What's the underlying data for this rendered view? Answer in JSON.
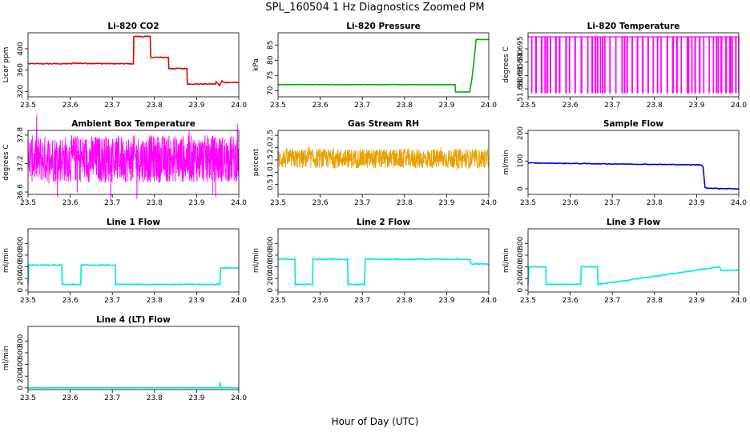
{
  "figure": {
    "title": "SPL_160504  1 Hz Diagnostics Zoomed PM",
    "xlabel": "Hour of Day (UTC)"
  },
  "chart_data": [
    {
      "type": "line",
      "title": "Li-820 CO2",
      "ylabel": "Licor ppm",
      "xlim": [
        23.5,
        24.0
      ],
      "ylim": [
        310,
        430
      ],
      "xticks": [
        "23.5",
        "23.6",
        "23.7",
        "23.8",
        "23.9",
        "24.0"
      ],
      "yticks": [
        {
          "v": 320,
          "label": "320"
        },
        {
          "v": 360,
          "label": "360"
        },
        {
          "v": 400,
          "label": "400"
        }
      ],
      "color": "#e00000",
      "noise": 0.8,
      "series": [
        {
          "x": [
            23.5,
            23.605,
            23.606,
            23.7,
            23.75,
            23.751,
            23.79,
            23.791,
            23.833,
            23.834,
            23.877,
            23.878,
            23.945,
            23.946,
            23.955,
            23.96,
            23.965,
            24.0
          ],
          "y": [
            372,
            372,
            373,
            372,
            372,
            423,
            423,
            384,
            384,
            363,
            363,
            334,
            334,
            338,
            331,
            340,
            337,
            337
          ]
        }
      ]
    },
    {
      "type": "line",
      "title": "Li-820 Pressure",
      "ylabel": "kPa",
      "xlim": [
        23.5,
        24.0
      ],
      "ylim": [
        68,
        89
      ],
      "xticks": [
        "23.5",
        "23.6",
        "23.7",
        "23.8",
        "23.9",
        "24.0"
      ],
      "yticks": [
        {
          "v": 70,
          "label": "70"
        },
        {
          "v": 75,
          "label": "75"
        },
        {
          "v": 80,
          "label": "80"
        },
        {
          "v": 85,
          "label": "85"
        }
      ],
      "color": "#00b000",
      "noise": 0.05,
      "series": [
        {
          "x": [
            23.5,
            23.92,
            23.921,
            23.955,
            23.96,
            23.965,
            23.97,
            24.0
          ],
          "y": [
            72,
            72,
            69.6,
            69.6,
            74,
            80,
            86.8,
            86.8
          ]
        }
      ]
    },
    {
      "type": "line",
      "title": "Li-820 Temperature",
      "ylabel": "degrees C",
      "xlim": [
        23.5,
        24.0
      ],
      "ylim": [
        51.677,
        51.701
      ],
      "xticks": [
        "23.5",
        "23.6",
        "23.7",
        "23.8",
        "23.9",
        "24.0"
      ],
      "yticks": [
        {
          "v": 51.68,
          "label": "51.680"
        },
        {
          "v": 51.685,
          "label": "51.685"
        },
        {
          "v": 51.69,
          "label": "51.690"
        },
        {
          "v": 51.695,
          "label": "51.695"
        }
      ],
      "color": "#ff00ff",
      "binary": [
        51.6785,
        51.6995
      ],
      "series": [
        {
          "x": [
            23.5,
            24.0
          ],
          "y": [
            51.6995,
            51.6995
          ]
        }
      ]
    },
    {
      "type": "line",
      "title": "Ambient Box Temperature",
      "ylabel": "degrees C",
      "xlim": [
        23.5,
        24.0
      ],
      "ylim": [
        36.55,
        37.9
      ],
      "xticks": [
        "23.5",
        "23.6",
        "23.7",
        "23.8",
        "23.9",
        "24.0"
      ],
      "yticks": [
        {
          "v": 36.6,
          "label": "36.6"
        },
        {
          "v": 37.2,
          "label": "37.2"
        },
        {
          "v": 37.8,
          "label": "37.8"
        }
      ],
      "color": "#ff00ff",
      "band": [
        36.8,
        37.8
      ],
      "series": [
        {
          "x": [
            23.5,
            24.0
          ],
          "y": [
            37.3,
            37.3
          ]
        }
      ]
    },
    {
      "type": "scatter",
      "title": "Gas Stream RH",
      "ylabel": "percent",
      "xlim": [
        23.5,
        24.0
      ],
      "ylim": [
        0.1,
        2.7
      ],
      "xticks": [
        "23.5",
        "23.6",
        "23.7",
        "23.8",
        "23.9",
        "24.0"
      ],
      "yticks": [
        {
          "v": 0.5,
          "label": "0.5"
        },
        {
          "v": 1.0,
          "label": "1.0"
        },
        {
          "v": 1.5,
          "label": "1.5"
        },
        {
          "v": 2.0,
          "label": "2.0"
        },
        {
          "v": 2.5,
          "label": "2.5"
        }
      ],
      "color": "#e8a000",
      "band": [
        1.15,
        1.95
      ],
      "series": [
        {
          "x": [
            23.5,
            24.0
          ],
          "y": [
            1.55,
            1.55
          ]
        }
      ]
    },
    {
      "type": "line",
      "title": "Sample Flow",
      "ylabel": "ml/min",
      "xlim": [
        23.5,
        24.0
      ],
      "ylim": [
        -20,
        210
      ],
      "xticks": [
        "23.5",
        "23.6",
        "23.7",
        "23.8",
        "23.9",
        "24.0"
      ],
      "yticks": [
        {
          "v": 0,
          "label": "0"
        },
        {
          "v": 100,
          "label": "100"
        },
        {
          "v": 200,
          "label": "200"
        }
      ],
      "color": "#0000cc",
      "noise": 1.2,
      "series": [
        {
          "x": [
            23.5,
            23.91,
            23.915,
            23.92,
            23.93,
            24.0
          ],
          "y": [
            93,
            86,
            80,
            5,
            2,
            0
          ]
        }
      ]
    },
    {
      "type": "line",
      "title": "Line 1 Flow",
      "ylabel": "ml/min",
      "xlim": [
        23.5,
        24.0
      ],
      "ylim": [
        -30,
        1050
      ],
      "xticks": [
        "23.5",
        "23.6",
        "23.7",
        "23.8",
        "23.9",
        "24.0"
      ],
      "yticks": [
        {
          "v": 0,
          "label": "0"
        },
        {
          "v": 200,
          "label": "200"
        },
        {
          "v": 400,
          "label": "400"
        },
        {
          "v": 600,
          "label": "600"
        },
        {
          "v": 800,
          "label": "800"
        }
      ],
      "color": "#00e5ee",
      "noise": 8,
      "series": [
        {
          "x": [
            23.5,
            23.502,
            23.58,
            23.581,
            23.625,
            23.626,
            23.707,
            23.708,
            23.955,
            23.957,
            24.0
          ],
          "y": [
            100,
            430,
            430,
            100,
            100,
            430,
            430,
            100,
            100,
            380,
            380
          ]
        }
      ]
    },
    {
      "type": "line",
      "title": "Line 2 Flow",
      "ylabel": "ml/min",
      "xlim": [
        23.5,
        24.0
      ],
      "ylim": [
        -30,
        1050
      ],
      "xticks": [
        "23.5",
        "23.6",
        "23.7",
        "23.8",
        "23.9",
        "24.0"
      ],
      "yticks": [
        {
          "v": 0,
          "label": "0"
        },
        {
          "v": 200,
          "label": "200"
        },
        {
          "v": 400,
          "label": "400"
        },
        {
          "v": 600,
          "label": "600"
        },
        {
          "v": 800,
          "label": "800"
        }
      ],
      "color": "#00e5ee",
      "noise": 10,
      "series": [
        {
          "x": [
            23.5,
            23.54,
            23.541,
            23.582,
            23.583,
            23.665,
            23.666,
            23.705,
            23.707,
            23.955,
            23.958,
            24.0
          ],
          "y": [
            530,
            530,
            100,
            100,
            530,
            530,
            100,
            100,
            530,
            530,
            450,
            450
          ]
        }
      ]
    },
    {
      "type": "line",
      "title": "Line 3 Flow",
      "ylabel": "ml/min",
      "xlim": [
        23.5,
        24.0
      ],
      "ylim": [
        -30,
        1050
      ],
      "xticks": [
        "23.5",
        "23.6",
        "23.7",
        "23.8",
        "23.9",
        "24.0"
      ],
      "yticks": [
        {
          "v": 0,
          "label": "0"
        },
        {
          "v": 200,
          "label": "200"
        },
        {
          "v": 400,
          "label": "400"
        },
        {
          "v": 600,
          "label": "600"
        },
        {
          "v": 800,
          "label": "800"
        }
      ],
      "color": "#00e5ee",
      "noise": 8,
      "series": [
        {
          "x": [
            23.5,
            23.502,
            23.542,
            23.543,
            23.625,
            23.626,
            23.665,
            23.666,
            23.955,
            23.957,
            24.0
          ],
          "y": [
            100,
            400,
            400,
            100,
            100,
            400,
            400,
            100,
            400,
            340,
            340
          ]
        }
      ]
    },
    {
      "type": "line",
      "title": "Line 4 (LT) Flow",
      "ylabel": "ml/min",
      "xlim": [
        23.5,
        24.0
      ],
      "ylim": [
        -30,
        1050
      ],
      "xticks": [
        "23.5",
        "23.6",
        "23.7",
        "23.8",
        "23.9",
        "24.0"
      ],
      "yticks": [
        {
          "v": 0,
          "label": "0"
        },
        {
          "v": 200,
          "label": "200"
        },
        {
          "v": 400,
          "label": "400"
        },
        {
          "v": 600,
          "label": "600"
        },
        {
          "v": 800,
          "label": "800"
        }
      ],
      "color": "#00e5ee",
      "noise": 1,
      "series": [
        {
          "x": [
            23.5,
            23.955,
            23.956,
            23.957,
            23.958,
            24.0
          ],
          "y": [
            0,
            0,
            100,
            10,
            0,
            0
          ]
        }
      ]
    }
  ]
}
